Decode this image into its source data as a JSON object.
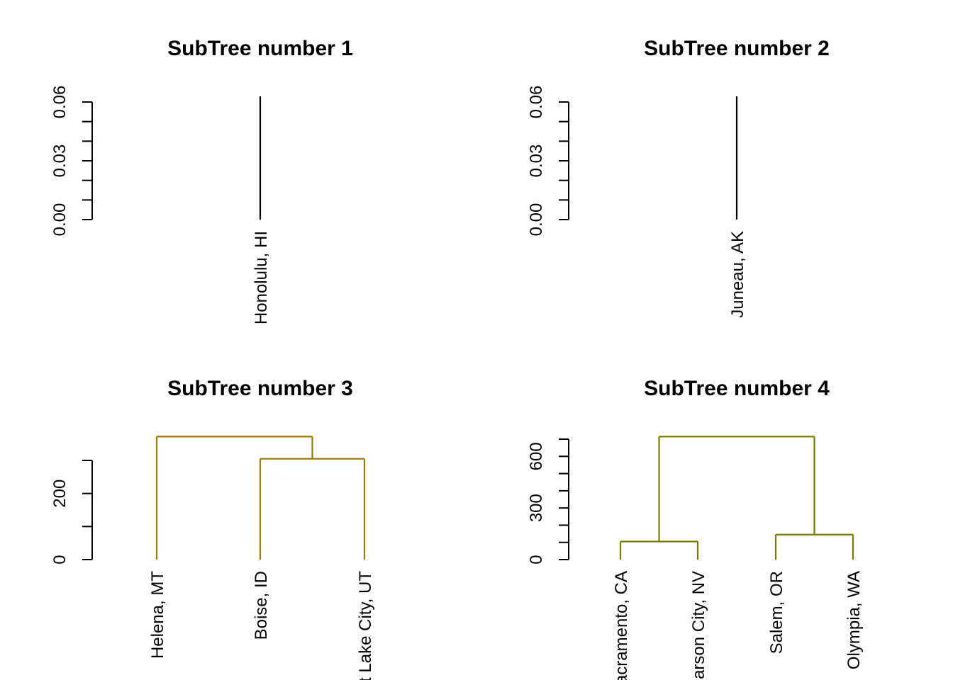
{
  "chart_data": [
    {
      "type": "dendrogram",
      "title": "SubTree number 1",
      "ylim": [
        0,
        0.06
      ],
      "ytick_labels": [
        "0.00",
        "0.03",
        "0.06"
      ],
      "ytick_values": [
        0,
        0.03,
        0.06
      ],
      "ytick_minor": [
        0,
        0.01,
        0.02,
        0.03,
        0.04,
        0.05,
        0.06
      ],
      "leaves": [
        "Honolulu, HI"
      ],
      "merges": [],
      "color": "#000000"
    },
    {
      "type": "dendrogram",
      "title": "SubTree number 2",
      "ylim": [
        0,
        0.06
      ],
      "ytick_labels": [
        "0.00",
        "0.03",
        "0.06"
      ],
      "ytick_values": [
        0,
        0.03,
        0.06
      ],
      "ytick_minor": [
        0,
        0.01,
        0.02,
        0.03,
        0.04,
        0.05,
        0.06
      ],
      "leaves": [
        "Juneau, AK"
      ],
      "merges": [],
      "color": "#000000"
    },
    {
      "type": "dendrogram",
      "title": "SubTree number 3",
      "ylim": [
        0,
        300
      ],
      "ytick_labels": [
        "0",
        "200"
      ],
      "ytick_values": [
        0,
        200
      ],
      "ytick_minor": [
        0,
        100,
        200,
        300
      ],
      "leaves": [
        "Helena, MT",
        "Boise, ID",
        "Salt Lake City, UT"
      ],
      "merges": [
        {
          "left": 1,
          "right": 2,
          "height": 305
        },
        {
          "left": 0,
          "right": "m0",
          "height": 372
        }
      ],
      "color": "#9B7A00"
    },
    {
      "type": "dendrogram",
      "title": "SubTree number 4",
      "ylim": [
        0,
        700
      ],
      "ytick_labels": [
        "0",
        "300",
        "600"
      ],
      "ytick_values": [
        0,
        300,
        600
      ],
      "ytick_minor": [
        0,
        100,
        200,
        300,
        400,
        500,
        600,
        700
      ],
      "leaves": [
        "Sacramento, CA",
        "Carson City, NV",
        "Salem, OR",
        "Olympia, WA"
      ],
      "merges": [
        {
          "left": 0,
          "right": 1,
          "height": 105
        },
        {
          "left": 2,
          "right": 3,
          "height": 145
        },
        {
          "left": "m0",
          "right": "m1",
          "height": 715
        }
      ],
      "color": "#7B7A00"
    }
  ]
}
